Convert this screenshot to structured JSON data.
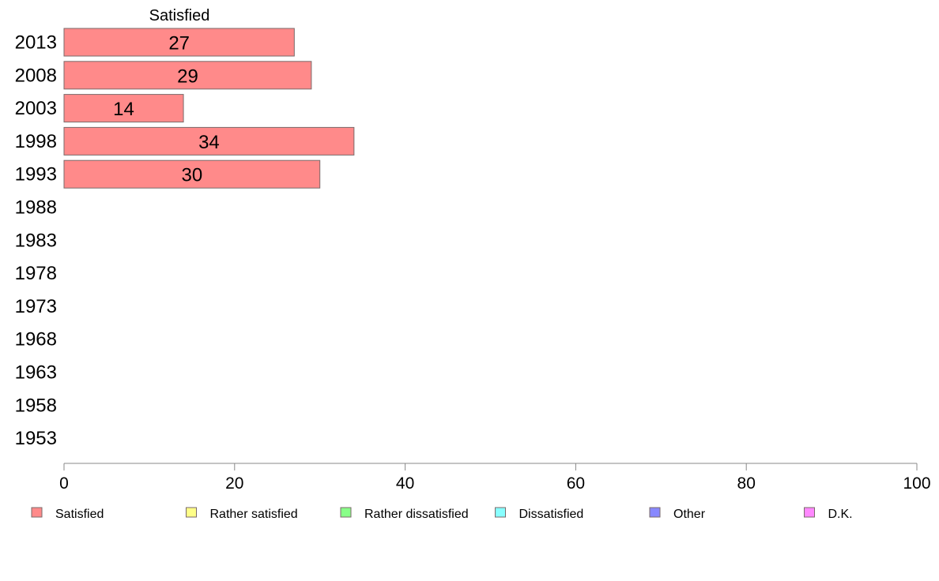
{
  "chart_data": {
    "type": "bar",
    "orientation": "horizontal",
    "stacked": true,
    "column_header": "Satisfied",
    "categories": [
      "2013",
      "2008",
      "2003",
      "1998",
      "1993",
      "1988",
      "1983",
      "1978",
      "1973",
      "1968",
      "1963",
      "1958",
      "1953"
    ],
    "series": [
      {
        "name": "Satisfied",
        "color": "#ff8a8a",
        "values": [
          27,
          29,
          14,
          34,
          30,
          null,
          null,
          null,
          null,
          null,
          null,
          null,
          null
        ]
      },
      {
        "name": "Rather satisfied",
        "color": "#ffff88",
        "values": [
          null,
          null,
          null,
          null,
          null,
          null,
          null,
          null,
          null,
          null,
          null,
          null,
          null
        ]
      },
      {
        "name": "Rather dissatisfied",
        "color": "#88ff88",
        "values": [
          null,
          null,
          null,
          null,
          null,
          null,
          null,
          null,
          null,
          null,
          null,
          null,
          null
        ]
      },
      {
        "name": "Dissatisfied",
        "color": "#88ffff",
        "values": [
          null,
          null,
          null,
          null,
          null,
          null,
          null,
          null,
          null,
          null,
          null,
          null,
          null
        ]
      },
      {
        "name": "Other",
        "color": "#8888ff",
        "values": [
          null,
          null,
          null,
          null,
          null,
          null,
          null,
          null,
          null,
          null,
          null,
          null,
          null
        ]
      },
      {
        "name": "D.K.",
        "color": "#ff88ff",
        "values": [
          null,
          null,
          null,
          null,
          null,
          null,
          null,
          null,
          null,
          null,
          null,
          null,
          null
        ]
      }
    ],
    "xlim": [
      0,
      100
    ],
    "xticks": [
      0,
      20,
      40,
      60,
      80,
      100
    ],
    "grid": false,
    "legend_position": "bottom"
  }
}
